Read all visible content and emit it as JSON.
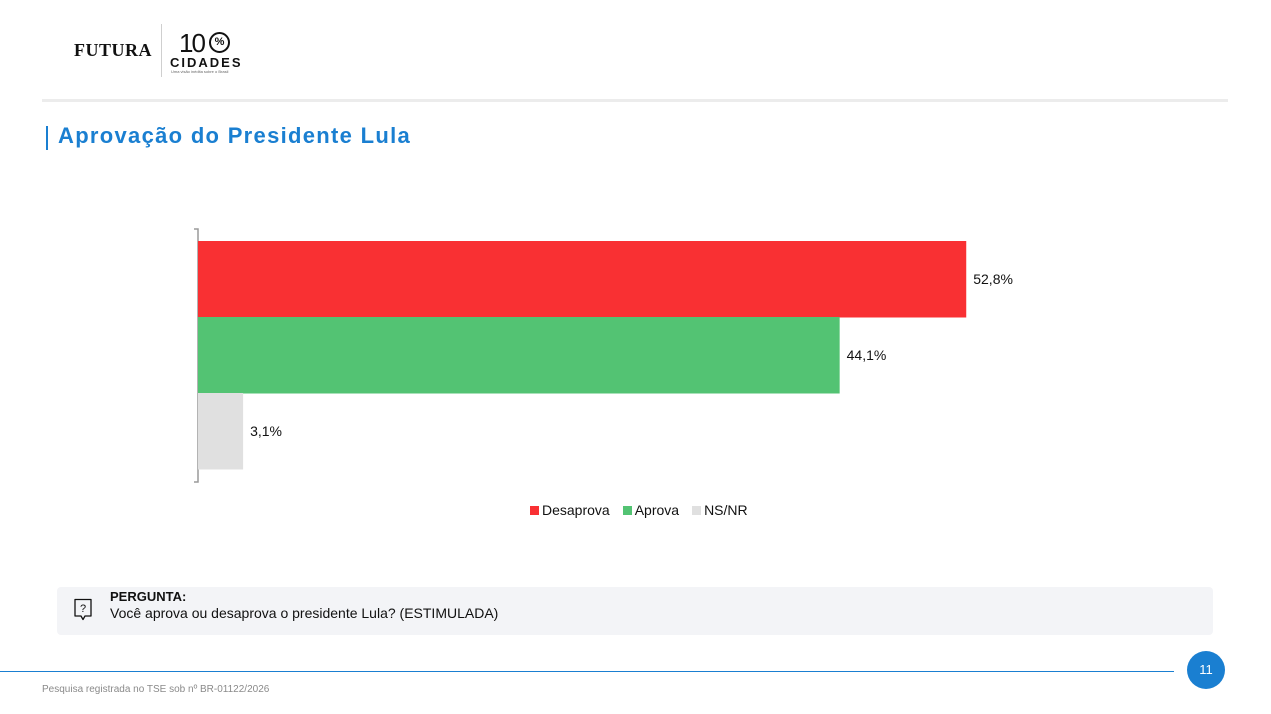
{
  "brand": {
    "name": "FUTURA",
    "partner_number": "10",
    "partner_percent": "%",
    "partner_word": "CIDADES",
    "partner_tagline": "Uma visão inédita sobre o Brasil"
  },
  "title": "Aprovação do Presidente Lula",
  "chart_data": {
    "type": "bar",
    "orientation": "horizontal",
    "categories": [
      "Desaprova",
      "Aprova",
      "NS/NR"
    ],
    "values": [
      52.8,
      44.1,
      3.1
    ],
    "value_labels": [
      "52,8%",
      "44,1%",
      "3,1%"
    ],
    "colors": [
      "#f93033",
      "#53c373",
      "#e0e0e0"
    ],
    "xlim": [
      0,
      60
    ],
    "grid": false,
    "legend": "bottom",
    "title": "",
    "xlabel": "",
    "ylabel": ""
  },
  "legend": [
    {
      "label": "Desaprova",
      "color": "#f93033"
    },
    {
      "label": "Aprova",
      "color": "#53c373"
    },
    {
      "label": "NS/NR",
      "color": "#e0e0e0"
    }
  ],
  "question": {
    "icon": "question-bubble-icon",
    "label": "PERGUNTA:",
    "text": "Você aprova ou desaprova o presidente Lula? (ESTIMULADA)"
  },
  "footer": {
    "page_number": "11",
    "note": "Pesquisa registrada no TSE sob nº BR-01122/2026",
    "accent_color": "#1a7fd1"
  }
}
